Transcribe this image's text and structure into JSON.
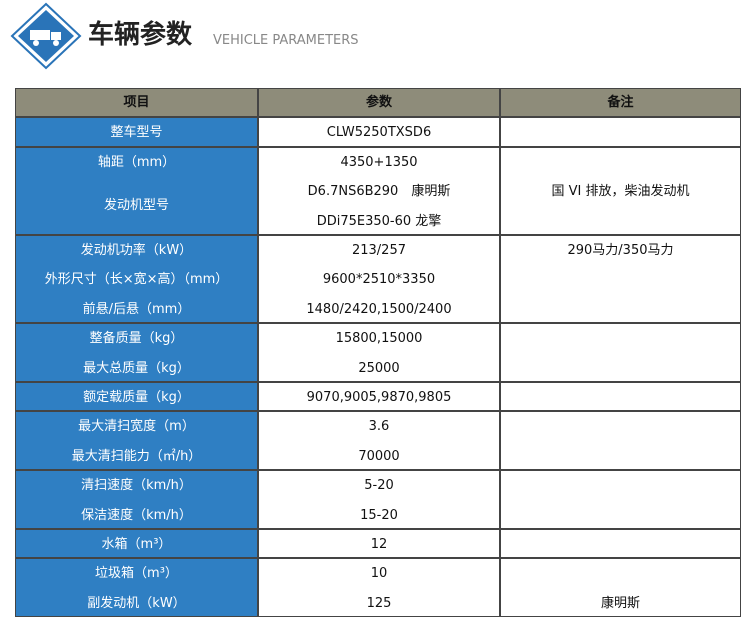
{
  "header": {
    "title": "车辆参数",
    "subtitle": "VEHICLE PARAMETERS"
  },
  "table": {
    "columns": [
      "项目",
      "参数",
      "备注"
    ],
    "groups": [
      {
        "items": [
          {
            "label": "整车型号",
            "value": [
              "CLW5250TXSD6"
            ]
          }
        ]
      },
      {
        "note": "国 VI 排放，柴油发动机",
        "items": [
          {
            "label": "轴距（mm）",
            "value": [
              "4350+1350"
            ]
          },
          {
            "label": "发动机型号",
            "value": [
              "D6.7NS6B290　康明斯",
              "DDi75E350-60 龙擎"
            ]
          }
        ]
      },
      {
        "items": [
          {
            "label": "发动机功率（kW）",
            "value": [
              "213/257"
            ],
            "note": "290马力/350马力"
          },
          {
            "label": "外形尺寸（长×宽×高）（mm）",
            "value": [
              "9600*2510*3350"
            ]
          },
          {
            "label": "前悬/后悬（mm）",
            "value": [
              "1480/2420,1500/2400"
            ]
          }
        ]
      },
      {
        "items": [
          {
            "label": "整备质量（kg）",
            "value": [
              "15800,15000"
            ]
          },
          {
            "label": "最大总质量（kg）",
            "value": [
              "25000"
            ]
          }
        ]
      },
      {
        "items": [
          {
            "label": "额定载质量（kg）",
            "value": [
              "9070,9005,9870,9805"
            ]
          }
        ]
      },
      {
        "items": [
          {
            "label": "最大清扫宽度（m）",
            "value": [
              "3.6"
            ]
          },
          {
            "label": "最大清扫能力（㎡/h）",
            "value": [
              "70000"
            ]
          }
        ]
      },
      {
        "items": [
          {
            "label": "清扫速度（km/h）",
            "value": [
              "5-20"
            ]
          },
          {
            "label": "保洁速度（km/h）",
            "value": [
              "15-20"
            ]
          }
        ]
      },
      {
        "items": [
          {
            "label": "水箱（m³）",
            "value": [
              "12"
            ]
          }
        ]
      },
      {
        "items": [
          {
            "label": "垃圾箱（m³）",
            "value": [
              "10"
            ]
          },
          {
            "label": "副发动机（kW）",
            "value": [
              "125"
            ],
            "note": "康明斯"
          }
        ]
      }
    ]
  }
}
